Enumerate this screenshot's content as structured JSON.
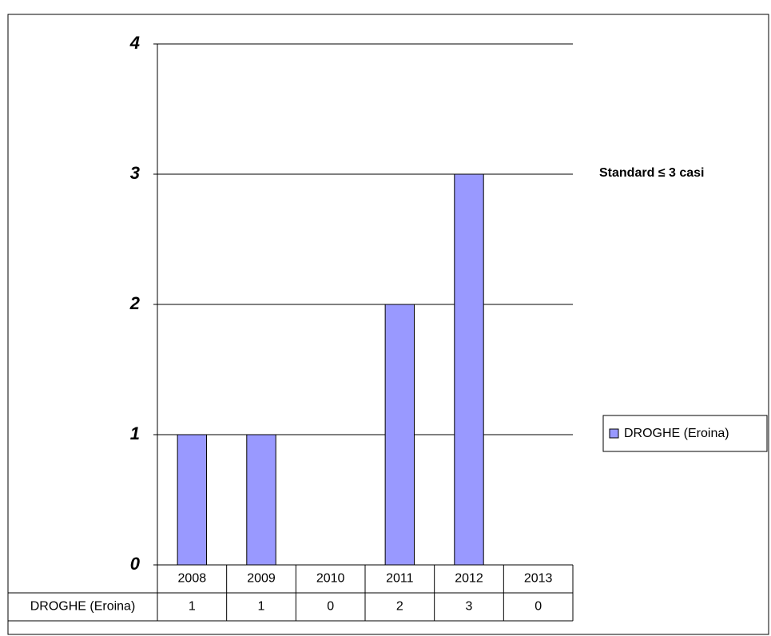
{
  "chart_data": {
    "type": "bar",
    "annotation": "Standard ≤ 3 casi",
    "categories": [
      "2008",
      "2009",
      "2010",
      "2011",
      "2012",
      "2013"
    ],
    "series": [
      {
        "name": "DROGHE (Eroina)",
        "color": "#9999ff",
        "values": [
          1,
          1,
          0,
          2,
          3,
          0
        ]
      }
    ],
    "ylim": [
      0,
      4
    ],
    "yticks": [
      0,
      1,
      2,
      3,
      4
    ],
    "grid": true,
    "legend": "right",
    "data_table": true
  }
}
